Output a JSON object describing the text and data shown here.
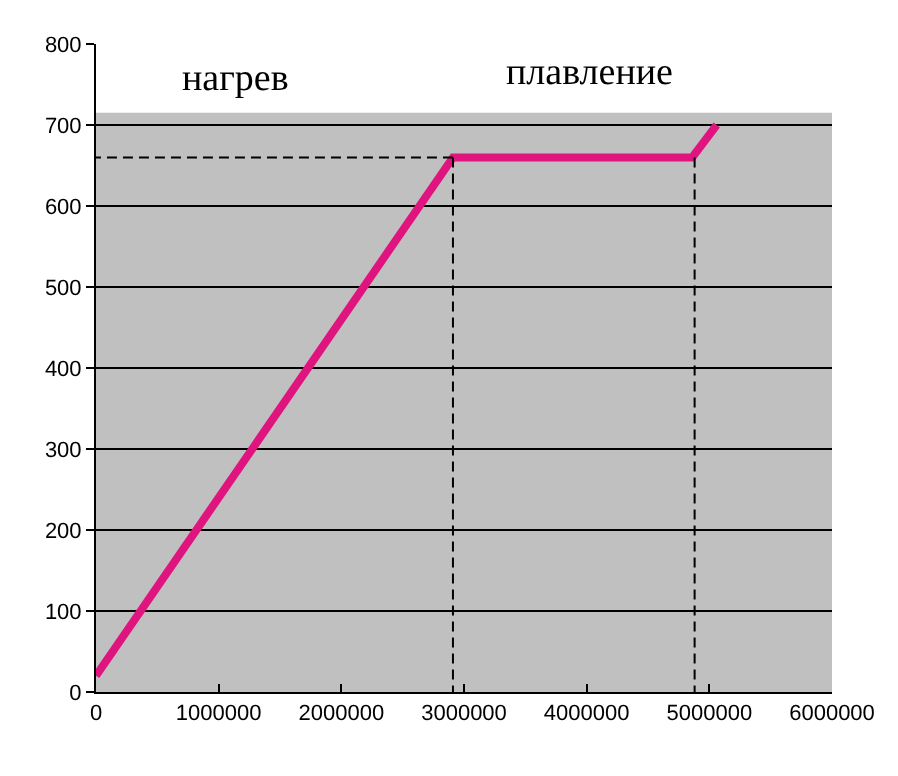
{
  "chart_data": {
    "type": "line",
    "series": [
      {
        "color": "#e0147f",
        "x": [
          0,
          2910000,
          4860000,
          5060000
        ],
        "values": [
          20,
          660,
          660,
          700
        ],
        "line_style": "solid"
      },
      {
        "color": "#000000",
        "x": [
          2910000,
          0
        ],
        "values": [
          660,
          660
        ],
        "line_style": "dashed"
      },
      {
        "color": "#000000",
        "x": [
          2910000,
          2910000
        ],
        "values": [
          660,
          0
        ],
        "line_style": "dashed"
      },
      {
        "color": "#000000",
        "x": [
          4880000,
          4880000
        ],
        "values": [
          660,
          0
        ],
        "line_style": "dashed"
      }
    ],
    "xlim": [
      0,
      6000000
    ],
    "xticks": [
      0,
      1000000,
      2000000,
      3000000,
      4000000,
      5000000,
      6000000
    ],
    "ylim": [
      0,
      800
    ],
    "yticks": [
      0,
      100,
      200,
      300,
      400,
      500,
      600,
      700,
      800
    ],
    "grid": "y",
    "marker": "none",
    "bands": [
      {
        "axis": "y",
        "from": 715,
        "to": 800,
        "color": "#ffffff"
      }
    ],
    "annotations": [
      "нагрев",
      "плавление"
    ]
  }
}
